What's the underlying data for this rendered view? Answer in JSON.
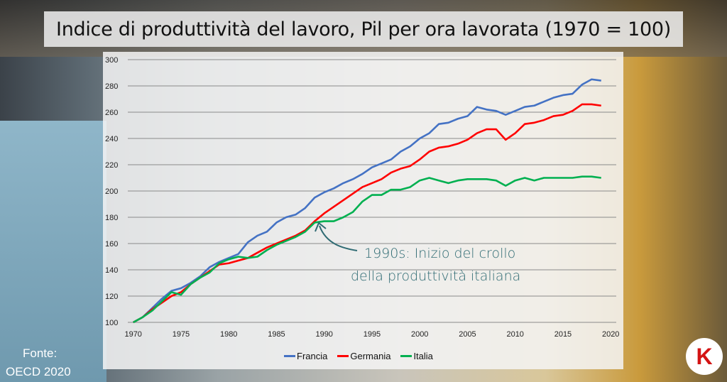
{
  "chart_data": {
    "type": "line",
    "title": "Indice di produttività del lavoro, Pil per ora lavorata (1970 = 100)",
    "xlabel": "",
    "ylabel": "",
    "xlim": [
      1970,
      2020
    ],
    "ylim": [
      100,
      300
    ],
    "x_ticks": [
      "1970",
      "1975",
      "1980",
      "1985",
      "1990",
      "1995",
      "2000",
      "2005",
      "2010",
      "2015",
      "2020"
    ],
    "y_ticks": [
      "100",
      "120",
      "140",
      "160",
      "180",
      "200",
      "220",
      "240",
      "260",
      "280",
      "300"
    ],
    "grid": true,
    "legend": "bottom",
    "x": [
      1970,
      1971,
      1972,
      1973,
      1974,
      1975,
      1976,
      1977,
      1978,
      1979,
      1980,
      1981,
      1982,
      1983,
      1984,
      1985,
      1986,
      1987,
      1988,
      1989,
      1990,
      1991,
      1992,
      1993,
      1994,
      1995,
      1996,
      1997,
      1998,
      1999,
      2000,
      2001,
      2002,
      2003,
      2004,
      2005,
      2006,
      2007,
      2008,
      2009,
      2010,
      2011,
      2012,
      2013,
      2014,
      2015,
      2016,
      2017,
      2018,
      2019
    ],
    "series": [
      {
        "name": "Francia",
        "color": "#4472c4",
        "values": [
          100,
          104,
          111,
          118,
          124,
          126,
          130,
          135,
          142,
          146,
          149,
          152,
          161,
          166,
          169,
          176,
          180,
          182,
          187,
          195,
          199,
          202,
          206,
          209,
          213,
          218,
          221,
          224,
          230,
          234,
          240,
          244,
          251,
          252,
          255,
          257,
          264,
          262,
          261,
          258,
          261,
          264,
          265,
          268,
          271,
          273,
          274,
          281,
          285,
          284
        ]
      },
      {
        "name": "Germania",
        "color": "#ff0000",
        "values": [
          100,
          104,
          110,
          115,
          120,
          123,
          129,
          134,
          139,
          144,
          145,
          147,
          149,
          153,
          157,
          160,
          163,
          166,
          170,
          177,
          183,
          188,
          193,
          198,
          203,
          206,
          209,
          214,
          217,
          219,
          224,
          230,
          233,
          234,
          236,
          239,
          244,
          247,
          247,
          239,
          244,
          251,
          252,
          254,
          257,
          258,
          261,
          266,
          266,
          265
        ]
      },
      {
        "name": "Italia",
        "color": "#00b050",
        "values": [
          100,
          104,
          109,
          116,
          123,
          121,
          129,
          134,
          138,
          145,
          148,
          150,
          149,
          150,
          155,
          159,
          162,
          165,
          169,
          176,
          177,
          177,
          180,
          184,
          192,
          197,
          197,
          201,
          201,
          203,
          208,
          210,
          208,
          206,
          208,
          209,
          209,
          209,
          208,
          204,
          208,
          210,
          208,
          210,
          210,
          210,
          210,
          211,
          211,
          210
        ]
      }
    ]
  },
  "annotation": {
    "line1": "1990s: Inizio del crollo",
    "line2": "della produttività italiana"
  },
  "source": {
    "line1": "Fonte:",
    "line2": "OECD 2020"
  },
  "logo_text": "K"
}
